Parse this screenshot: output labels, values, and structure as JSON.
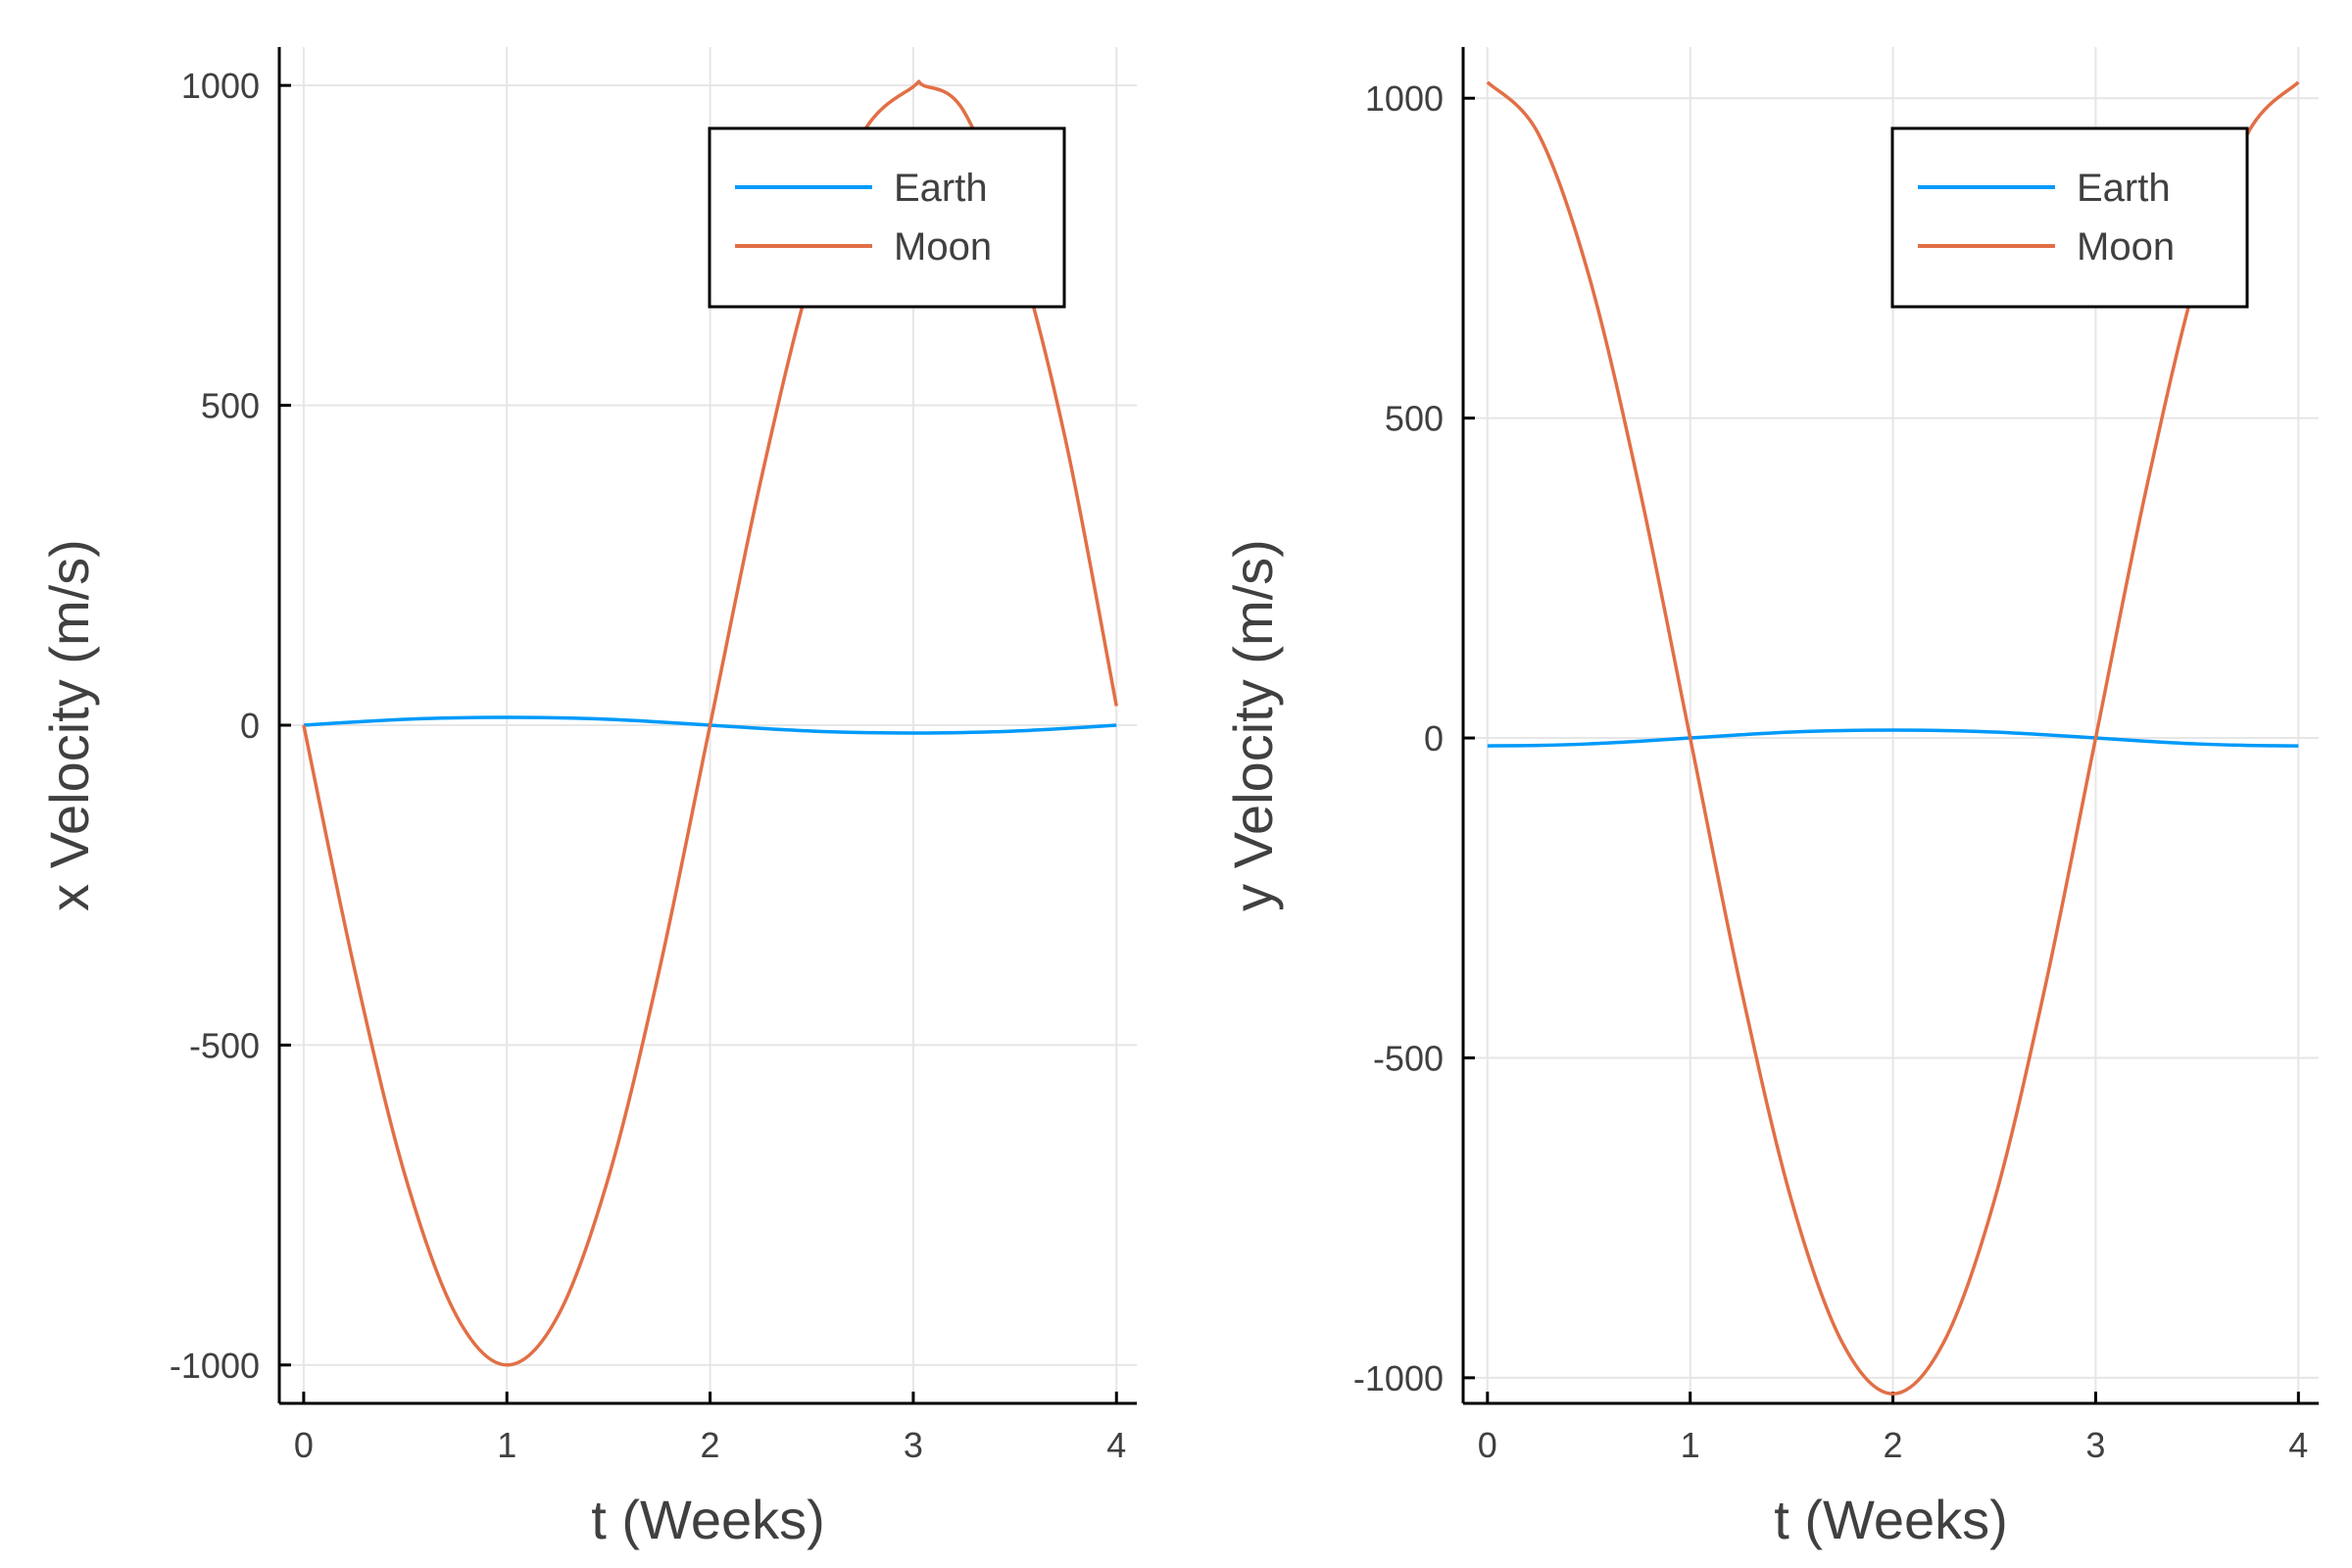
{
  "chart_data": [
    {
      "type": "line",
      "xlabel": "t (Weeks)",
      "ylabel": "x Velocity (m/s)",
      "xlim": [
        -0.12,
        4.1
      ],
      "ylim": [
        -1060,
        1060
      ],
      "xticks": [
        0,
        1,
        2,
        3,
        4
      ],
      "xtick_labels": [
        "0",
        "1",
        "2",
        "3",
        "4"
      ],
      "yticks": [
        -1000,
        -500,
        0,
        500,
        1000
      ],
      "ytick_labels": [
        "-1000",
        "-500",
        "0",
        "500",
        "1000"
      ],
      "grid": true,
      "legend": "top-right",
      "series": [
        {
          "name": "Earth",
          "color": "#009AFA",
          "x": [
            0,
            0.25,
            0.5,
            0.75,
            1.0,
            1.25,
            1.5,
            1.75,
            2.0,
            2.25,
            2.5,
            2.75,
            3.0,
            3.25,
            3.5,
            3.75,
            4.0
          ],
          "y": [
            0,
            5,
            9.2,
            11.5,
            12.3,
            11.5,
            9.2,
            5,
            0,
            -5,
            -9.2,
            -11.5,
            -12.3,
            -11.5,
            -9.2,
            -5,
            0
          ]
        },
        {
          "name": "Moon",
          "color": "#E26F46",
          "x": [
            0,
            0.25,
            0.5,
            0.75,
            1.0,
            1.25,
            1.5,
            1.75,
            2.0,
            2.25,
            2.5,
            2.75,
            3.0,
            3.05,
            3.25,
            3.5,
            3.75,
            4.0
          ],
          "y": [
            0,
            -381,
            -705,
            -922,
            -1000,
            -924,
            -707,
            -383,
            0,
            383,
            707,
            924,
            998,
            1000,
            959,
            756,
            445,
            30
          ]
        }
      ]
    },
    {
      "type": "line",
      "xlabel": "t (Weeks)",
      "ylabel": "y Velocity (m/s)",
      "xlim": [
        -0.12,
        4.1
      ],
      "ylim": [
        -1040,
        1080
      ],
      "xticks": [
        0,
        1,
        2,
        3,
        4
      ],
      "xtick_labels": [
        "0",
        "1",
        "2",
        "3",
        "4"
      ],
      "yticks": [
        -1000,
        -500,
        0,
        500,
        1000
      ],
      "ytick_labels": [
        "-1000",
        "-500",
        "0",
        "500",
        "1000"
      ],
      "grid": true,
      "legend": "top-right",
      "series": [
        {
          "name": "Earth",
          "color": "#009AFA",
          "x": [
            0,
            0.25,
            0.5,
            0.75,
            1.0,
            1.25,
            1.5,
            1.75,
            2.0,
            2.25,
            2.5,
            2.75,
            3.0,
            3.25,
            3.5,
            3.75,
            4.0
          ],
          "y": [
            -12.3,
            -11.5,
            -9.2,
            -5,
            0,
            5,
            9.2,
            11.5,
            12.3,
            11.5,
            9.2,
            5,
            0,
            -5,
            -9.2,
            -11.5,
            -12.3
          ]
        },
        {
          "name": "Moon",
          "color": "#E26F46",
          "x": [
            0,
            0.25,
            0.5,
            0.75,
            1.0,
            1.25,
            1.5,
            1.75,
            2.0,
            2.25,
            2.5,
            2.75,
            3.0,
            3.25,
            3.5,
            3.75,
            4.0
          ],
          "y": [
            1025,
            945,
            723,
            390,
            0,
            -390,
            -723,
            -945,
            -1025,
            -945,
            -723,
            -390,
            0,
            390,
            723,
            945,
            1025
          ]
        }
      ]
    }
  ]
}
